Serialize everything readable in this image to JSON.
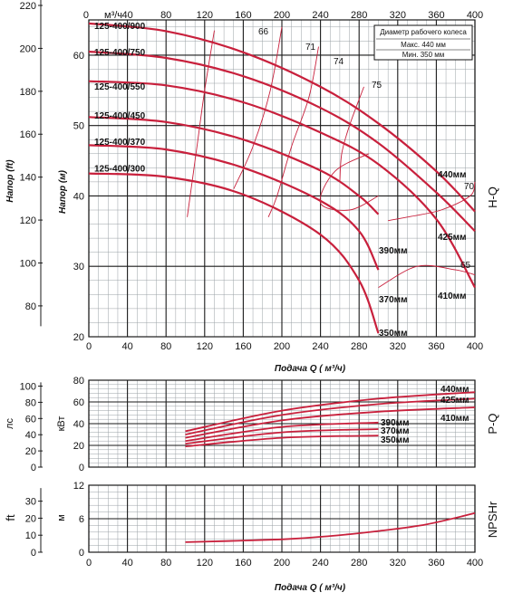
{
  "colors": {
    "curve": "#c8203c",
    "grid": "#1a1a1a",
    "minor": "#9aa0a6"
  },
  "chart_data": [
    {
      "type": "line",
      "title": "",
      "side_label": "H-Q",
      "xlabel": "Подача Q ( м³/ч)",
      "xlim": [
        0,
        400
      ],
      "top_axis_unit": "м³/ч",
      "ylabel": "Напор (м)",
      "ylim": [
        20,
        65
      ],
      "y2label": "Напор (ft)",
      "y2_ticks": [
        80,
        100,
        120,
        140,
        160,
        180,
        200,
        220
      ],
      "legend_box": {
        "title": "Диаметр рабочего колеса",
        "max": "Макс. 440 мм",
        "min": "Мин. 350 мм"
      },
      "series": [
        {
          "name": "440мм",
          "x": [
            0,
            80,
            160,
            240,
            300,
            360,
            400
          ],
          "y": [
            64.5,
            63.4,
            60.4,
            55.5,
            50.3,
            43.5,
            37.8
          ]
        },
        {
          "name": "425мм",
          "x": [
            0,
            80,
            160,
            240,
            300,
            360,
            400
          ],
          "y": [
            60.5,
            59.6,
            57,
            52.5,
            47.5,
            40.5,
            35
          ]
        },
        {
          "name": "410мм",
          "x": [
            0,
            80,
            160,
            240,
            300,
            360,
            400
          ],
          "y": [
            56.3,
            55.7,
            53.3,
            49,
            44.5,
            36.7,
            27
          ]
        },
        {
          "name": "390мм",
          "x": [
            0,
            80,
            160,
            240,
            280,
            300
          ],
          "y": [
            51.2,
            50.5,
            48,
            43.6,
            40,
            37.4
          ]
        },
        {
          "name": "370мм",
          "x": [
            0,
            80,
            160,
            240,
            280,
            300
          ],
          "y": [
            47.2,
            46.6,
            44,
            39.3,
            35,
            29.5
          ]
        },
        {
          "name": "350мм",
          "x": [
            0,
            80,
            160,
            240,
            280,
            300
          ],
          "y": [
            43.2,
            42.7,
            40.2,
            34.5,
            28,
            20.5
          ]
        }
      ],
      "curve_labels": [
        "440мм",
        "425мм",
        "410мм",
        "390мм",
        "370мм",
        "350мм"
      ],
      "model_labels": [
        {
          "text": "125-400/900",
          "y": 63.3
        },
        {
          "text": "125-400/750",
          "y": 59.6
        },
        {
          "text": "125-400/550",
          "y": 54.7
        },
        {
          "text": "125-400/450",
          "y": 50.6
        },
        {
          "text": "125-400/370",
          "y": 46.9
        },
        {
          "text": "125-400/300",
          "y": 43.1
        }
      ],
      "efficiency_labels": [
        "66",
        "71",
        "74",
        "75",
        "70",
        "65"
      ]
    },
    {
      "type": "line",
      "title": "",
      "side_label": "P-Q",
      "ylabel": "кВт",
      "ylim": [
        0,
        80
      ],
      "y2label": "лс",
      "y2_ticks": [
        0,
        20,
        40,
        60,
        80,
        100
      ],
      "series": [
        {
          "name": "440мм",
          "x": [
            100,
            200,
            300,
            400
          ],
          "y": [
            33,
            52,
            63,
            69
          ]
        },
        {
          "name": "425мм",
          "x": [
            100,
            200,
            300,
            400
          ],
          "y": [
            30,
            48,
            58,
            63
          ]
        },
        {
          "name": "410мм",
          "x": [
            100,
            200,
            300,
            400
          ],
          "y": [
            27,
            43,
            51,
            55
          ]
        },
        {
          "name": "390мм",
          "x": [
            100,
            200,
            300
          ],
          "y": [
            24,
            37,
            41
          ]
        },
        {
          "name": "370мм",
          "x": [
            100,
            200,
            300
          ],
          "y": [
            21.5,
            32,
            35
          ]
        },
        {
          "name": "350мм",
          "x": [
            100,
            200,
            300
          ],
          "y": [
            19,
            27,
            29
          ]
        }
      ]
    },
    {
      "type": "line",
      "title": "",
      "side_label": "NPSHr",
      "ylabel": "м",
      "ylim": [
        0,
        12
      ],
      "y2label": "ft",
      "y2_ticks": [
        0,
        10,
        20,
        30
      ],
      "xlabel": "Подача Q ( м³/ч)",
      "series": [
        {
          "name": "NPSHr",
          "x": [
            100,
            200,
            250,
            300,
            350,
            400
          ],
          "y": [
            1.8,
            2.3,
            2.9,
            3.8,
            5.0,
            7.0
          ]
        }
      ]
    }
  ],
  "efficiency": [
    {
      "label": "66",
      "x": [
        130,
        120,
        112,
        102
      ],
      "y": [
        63.5,
        55,
        47,
        37
      ]
    },
    {
      "label": "71",
      "x": [
        200,
        188,
        170,
        150
      ],
      "y": [
        64,
        55,
        47,
        41
      ]
    },
    {
      "label": "74",
      "x": [
        238,
        228,
        210,
        195,
        186
      ],
      "y": [
        61.2,
        54,
        47,
        40,
        37
      ]
    },
    {
      "label": "75",
      "x": [
        285,
        270,
        262,
        260
      ],
      "y": [
        55.5,
        50,
        46,
        42
      ]
    },
    {
      "label": "70",
      "x": [
        400,
        395,
        365,
        330,
        310
      ],
      "y": [
        42,
        40,
        38,
        37,
        36.5
      ]
    },
    {
      "label": "65",
      "x": [
        400,
        380,
        340,
        300
      ],
      "y": [
        28.8,
        29.5,
        30,
        27
      ]
    }
  ]
}
